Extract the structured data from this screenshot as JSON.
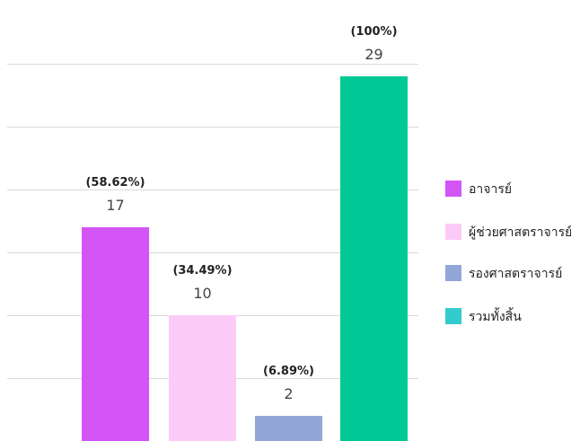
{
  "chart_data": {
    "type": "bar",
    "categories": [
      "อาจารย์",
      "ผู้ช่วยศาสตราจารย์",
      "รองศาสตราจารย์",
      "รวมทั้งสิ้น"
    ],
    "values": [
      17,
      10,
      2,
      29
    ],
    "percent_labels": [
      "(58.62%)",
      "(34.49%)",
      "(6.89%)",
      "(100%)"
    ],
    "value_labels": [
      "17",
      "10",
      "2",
      "29"
    ],
    "colors": [
      "#d455f5",
      "#fccaf6",
      "#93a6d8",
      "#00c995"
    ],
    "legend_colors": [
      "#d455f5",
      "#fccaf6",
      "#93a6d8",
      "#33cccc"
    ],
    "ylim": [
      0,
      32
    ],
    "grid": true,
    "legend_position": "right",
    "title": "",
    "xlabel": "",
    "ylabel": ""
  }
}
